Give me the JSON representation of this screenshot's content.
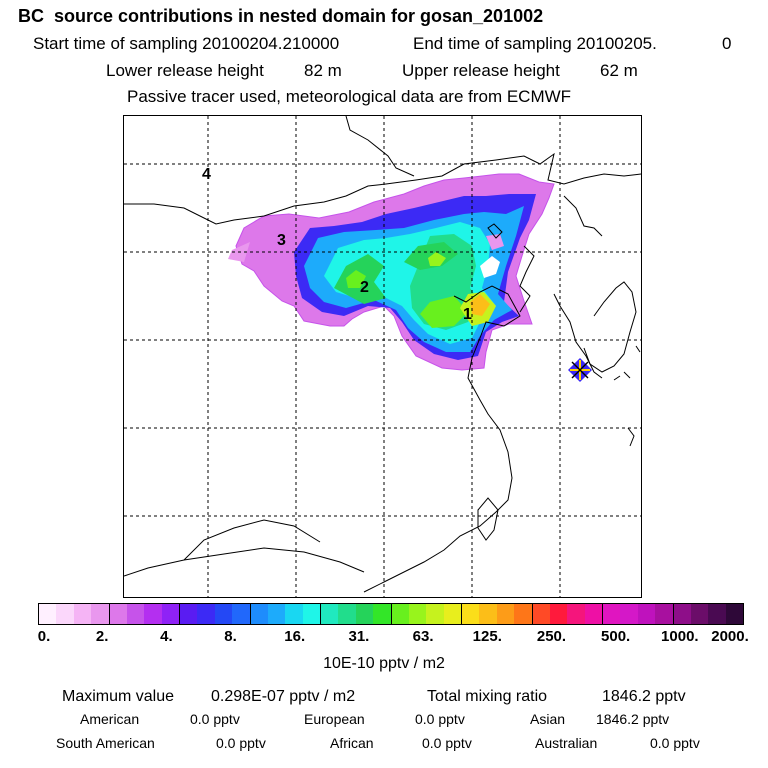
{
  "header": {
    "title": "BC  source contributions in nested domain for gosan_201002",
    "start_label": "Start time of sampling 20100204.210000",
    "end_label": "End time of sampling 20100205.",
    "end_value": "0",
    "lower_label": "Lower release height",
    "lower_value": "82 m",
    "upper_label": "Upper release height",
    "upper_value": "62 m",
    "tracer_note": "Passive tracer used, meteorological data are from ECMWF"
  },
  "map": {
    "labels": [
      "1",
      "2",
      "3",
      "4"
    ]
  },
  "colorbar": {
    "colors": [
      "#fff0ff",
      "#fbd7fb",
      "#f5b4f5",
      "#e997ee",
      "#dd78ea",
      "#c653ea",
      "#b42ff0",
      "#8f22f6",
      "#5a1cf2",
      "#3c2af5",
      "#2448f5",
      "#2168fb",
      "#1e8cfc",
      "#1dabfb",
      "#19d7f2",
      "#1ff5e8",
      "#20e9bf",
      "#21dd8c",
      "#25d35a",
      "#33e628",
      "#68f01e",
      "#98f41c",
      "#c6f21e",
      "#e8ee1d",
      "#fbde1a",
      "#fcbe18",
      "#fd9c18",
      "#fe7618",
      "#ff4a26",
      "#ff1a3c",
      "#f5157c",
      "#ee10a5",
      "#e015c0",
      "#d418c8",
      "#bf12bd",
      "#a8109f",
      "#8e0e89",
      "#6b0d69",
      "#4a0a52",
      "#2e0838"
    ],
    "ticks": [
      "0.",
      "2.",
      "4.",
      "8.",
      "16.",
      "31.",
      "63.",
      "125.",
      "250.",
      "500.",
      "1000.",
      "2000."
    ],
    "units": "10E-10 pptv / m2"
  },
  "summary": {
    "max_label": "Maximum value",
    "max_value": "0.298E-07 pptv / m2",
    "total_label": "Total mixing ratio",
    "total_value": "1846.2 pptv",
    "regions": [
      {
        "name": "American",
        "value": "0.0 pptv"
      },
      {
        "name": "European",
        "value": "0.0 pptv"
      },
      {
        "name": "Asian",
        "value": "1846.2 pptv"
      },
      {
        "name": "South American",
        "value": "0.0 pptv"
      },
      {
        "name": "African",
        "value": "0.0 pptv"
      },
      {
        "name": "Australian",
        "value": "0.0 pptv"
      }
    ]
  }
}
